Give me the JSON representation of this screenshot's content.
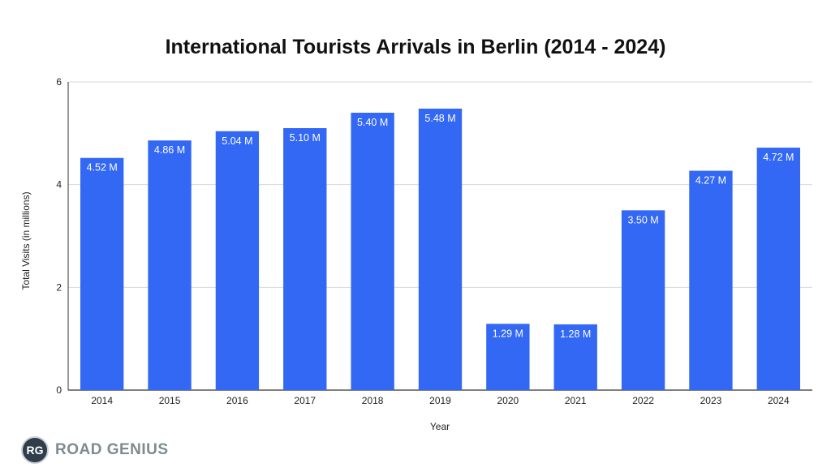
{
  "chart_data": {
    "type": "bar",
    "title": "International Tourists Arrivals in Berlin (2014 - 2024)",
    "xlabel": "Year",
    "ylabel": "Total Visits (in millions)",
    "categories": [
      "2014",
      "2015",
      "2016",
      "2017",
      "2018",
      "2019",
      "2020",
      "2021",
      "2022",
      "2023",
      "2024"
    ],
    "values": [
      4.52,
      4.86,
      5.04,
      5.1,
      5.4,
      5.48,
      1.29,
      1.28,
      3.5,
      4.27,
      4.72
    ],
    "data_labels": [
      "4.52 M",
      "4.86 M",
      "5.04 M",
      "5.10 M",
      "5.40 M",
      "5.48 M",
      "1.29 M",
      "1.28 M",
      "3.50 M",
      "4.27 M",
      "4.72 M"
    ],
    "ylim": [
      0,
      6
    ],
    "yticks": [
      "0",
      "2",
      "4",
      "6"
    ],
    "ytick_values": [
      0,
      2,
      4,
      6
    ],
    "grid": true,
    "bar_color": "#3368f5"
  },
  "logo": {
    "badge": "RG",
    "text": "ROAD GENIUS"
  }
}
